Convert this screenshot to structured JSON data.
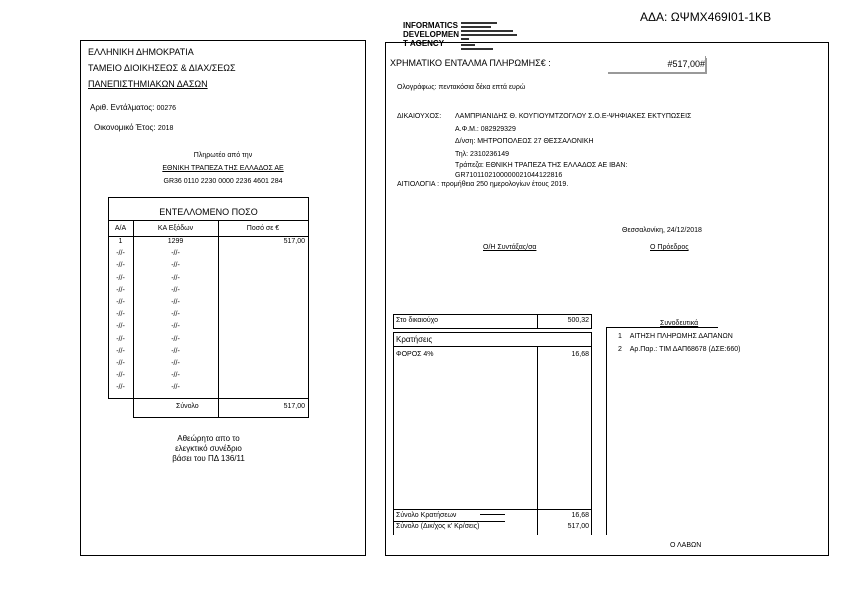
{
  "ada": "ΑΔΑ: ΩΨΜΧ469Ι01-1ΚΒ",
  "signature_stamp": {
    "org_lines": [
      "INFORMATICS",
      "DEVELOPMEN",
      "T AGENCY"
    ]
  },
  "left": {
    "header": [
      "ΕΛΛΗΝΙΚΗ ΔΗΜΟΚΡΑΤΙΑ",
      "ΤΑΜΕΙΟ ΔΙΟΙΚΗΣΕΩΣ & ΔΙΑΧ/ΣΕΩΣ",
      "ΠΑΝΕΠΙΣΤΗΜΙΑΚΩΝ ΔΑΣΩΝ"
    ],
    "order_no_label": "Αριθ. Εντάλματος:",
    "order_no": "00276",
    "fiscal_year_label": "Οικονομικό Έτος:",
    "fiscal_year": "2018",
    "payable_by": "Πληρωτέο από την",
    "bank": "ΕΘΝΙΚΗ ΤΡΑΠΕΖΑ ΤΗΣ ΕΛΛΑΔΟΣ ΑΕ",
    "bank_iban": "GR36 0110 2230 0000 2236 4601 284",
    "table": {
      "title": "ΕΝΤΕΛΛΟΜΕΝΟ ΠΟΣΟ",
      "columns": [
        "Α/Α",
        "ΚΑ Εξόδων",
        "Ποσό σε €"
      ],
      "rows": [
        [
          "1",
          "1299",
          "517,00"
        ],
        [
          "-//-",
          "-//-",
          ""
        ],
        [
          "-//-",
          "-//-",
          ""
        ],
        [
          "-//-",
          "-//-",
          ""
        ],
        [
          "-//-",
          "-//-",
          ""
        ],
        [
          "-//-",
          "-//-",
          ""
        ],
        [
          "-//-",
          "-//-",
          ""
        ],
        [
          "-//-",
          "-//-",
          ""
        ],
        [
          "-//-",
          "-//-",
          ""
        ],
        [
          "-//-",
          "-//-",
          ""
        ],
        [
          "-//-",
          "-//-",
          ""
        ],
        [
          "-//-",
          "-//-",
          ""
        ],
        [
          "-//-",
          "-//-",
          ""
        ]
      ],
      "total_label": "Σύνολο",
      "total": "517,00"
    },
    "note": [
      "Αθεώρητο απο το",
      "ελεγκτικό συνέδριο",
      "βάσει του ΠΔ 136/11"
    ]
  },
  "right": {
    "title": "ΧΡΗΜΑΤΙΚΟ ΕΝΤΑΛΜΑ ΠΛΗΡΩΜΗΣ€ :",
    "amount": "#517,00#",
    "in_words_label": "Ολογράφως:",
    "in_words": "πεντακόσια δέκα επτά ευρώ",
    "beneficiary_label": "ΔΙΚΑΙΟΥΧΟΣ:",
    "beneficiary_lines": [
      "ΛΑΜΠΡΙΑΝΙΔΗΣ Θ. ΚΟΥΓΙΟΥΜΤΖΟΓΛΟΥ Σ.Ο.Ε-ΨΗΦΙΑΚΕΣ ΕΚΤΥΠΩΣΕΙΣ",
      "Α.Φ.Μ.: 082929329",
      "Δ/νση: ΜΗΤΡΟΠΟΛΕΩΣ 27  ΘΕΣΣΑΛΟΝΙΚΗ",
      "Τηλ: 2310236149",
      "Τράπεζα: ΕΘΝΙΚΗ ΤΡΑΠΕΖΑ ΤΗΣ ΕΛΛΑΔΟΣ ΑΕ   IBAN:",
      "GR7101102100000021044122816"
    ],
    "reason_label": "ΑΙΤΙΟΛΟΓΙΑ :",
    "reason": "προμήθεια 250 ημερολογίων έτους 2019.",
    "place_date": "Θεσσαλονίκη, 24/12/2018",
    "signer1": "Ο/Η Συντάξας/σα",
    "signer2": "Ο Πρόεδρος",
    "to_beneficiary_label": "Στο δικαιούχο",
    "to_beneficiary": "500,32",
    "deductions_label": "Κρατήσεις",
    "deductions": [
      {
        "label": "ΦΟΡΟΣ 4%",
        "value": "16,68"
      }
    ],
    "total_deductions_label": "Σύνολο Κρατήσεων",
    "total_deductions": "16,68",
    "grand_total_label": "Σύνολο (Δικ/χος κ' Κρ/σεις)",
    "grand_total": "517,00",
    "docs_title": "Συνοδευτικά",
    "docs": [
      {
        "no": "1",
        "text": "ΑΙΤΗΣΗ ΠΛΗΡΩΜΗΣ ΔΑΠΑΝΩΝ"
      },
      {
        "no": "2",
        "text": "Αρ.Παρ.: ΤΙΜ ΔΑΠ68678 (ΔΣΕ:660)"
      }
    ],
    "receiver": "Ο ΛΑΒΩΝ"
  }
}
